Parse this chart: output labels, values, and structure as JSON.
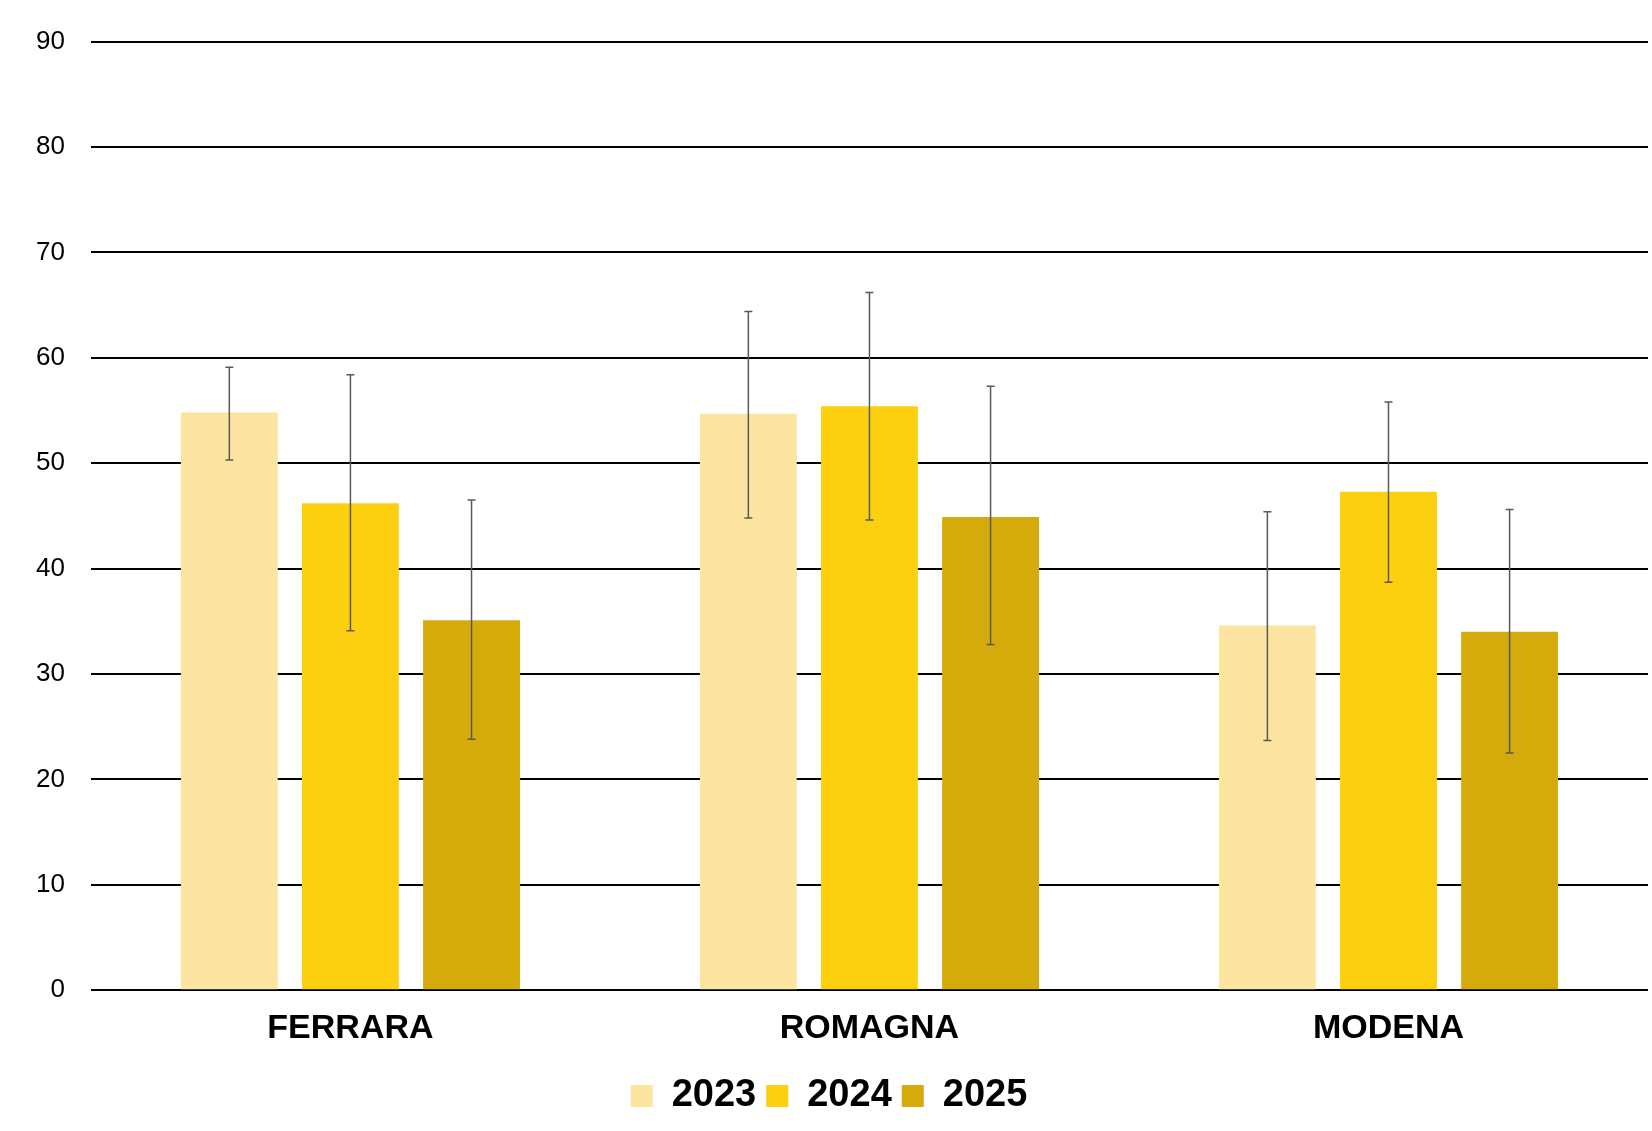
{
  "chart_data": {
    "type": "bar",
    "categories": [
      "FERRARA",
      "ROMAGNA",
      "MODENA"
    ],
    "series": [
      {
        "name": "2023",
        "color": "#fde4a0",
        "values": [
          54.8,
          54.7,
          34.6
        ],
        "errors": [
          [
            50.3,
            59.1
          ],
          [
            44.8,
            64.4
          ],
          [
            23.7,
            45.4
          ]
        ]
      },
      {
        "name": "2024",
        "color": "#fdd00f",
        "values": [
          46.2,
          55.4,
          47.3
        ],
        "errors": [
          [
            34.1,
            58.4
          ],
          [
            44.6,
            66.2
          ],
          [
            38.7,
            55.8
          ]
        ]
      },
      {
        "name": "2025",
        "color": "#d4ab0b",
        "values": [
          35.1,
          44.9,
          34.0
        ],
        "errors": [
          [
            23.8,
            46.5
          ],
          [
            32.8,
            57.3
          ],
          [
            22.5,
            45.6
          ]
        ]
      }
    ],
    "ylim": [
      0,
      90
    ],
    "yticks": [
      0,
      10,
      20,
      30,
      40,
      50,
      60,
      70,
      80,
      90
    ],
    "grid": "y",
    "legend": "bottom"
  }
}
